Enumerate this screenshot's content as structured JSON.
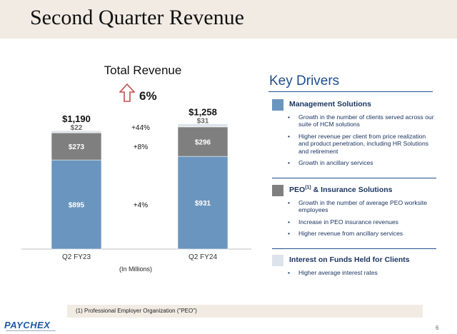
{
  "page": {
    "title": "Second Quarter Revenue",
    "page_number": "6",
    "footnote": "(1)    Professional Employer Organization (\"PEO\")",
    "logo": "PAYCHEX"
  },
  "chart_data": {
    "type": "bar",
    "stacked": true,
    "title": "Total Revenue",
    "units_note": "(In Millions)",
    "growth_total": "6%",
    "categories": [
      "Q2 FY23",
      "Q2 FY24"
    ],
    "totals": [
      "$1,190",
      "$1,258"
    ],
    "total_values": [
      1190,
      1258
    ],
    "series": [
      {
        "name": "Management Solutions",
        "values": [
          895,
          931
        ],
        "labels": [
          "$895",
          "$931"
        ],
        "color": "#6a95be",
        "growth": "+4%"
      },
      {
        "name": "PEO & Insurance Solutions",
        "values": [
          273,
          296
        ],
        "labels": [
          "$273",
          "$296"
        ],
        "color": "#7f7f7f",
        "growth": "+8%"
      },
      {
        "name": "Interest on Funds Held for Clients",
        "values": [
          22,
          31
        ],
        "labels": [
          "$22",
          "$31"
        ],
        "color": "#dde3ea",
        "growth": "+44%"
      }
    ],
    "ylim": [
      0,
      1300
    ],
    "grid": false
  },
  "drivers": {
    "title": "Key Drivers",
    "groups": [
      {
        "name": "Management Solutions",
        "sup": "",
        "color": "#6a95be",
        "bullets": [
          "Growth in the number of clients served across our suite of HCM solutions",
          "Higher revenue per client from price realization and product penetration, including HR Solutions and retirement",
          "Growth in ancillary services"
        ]
      },
      {
        "name": "PEO",
        "sup": "(1)",
        "name_suffix": " & Insurance Solutions",
        "color": "#7f7f7f",
        "bullets": [
          "Growth in the number of average PEO worksite employees",
          "Increase in PEO insurance revenues",
          "Higher revenue from ancillary services"
        ]
      },
      {
        "name": "Interest on Funds Held for Clients",
        "sup": "",
        "color": "#dde3ea",
        "bullets": [
          "Higher average interest rates"
        ]
      }
    ]
  }
}
